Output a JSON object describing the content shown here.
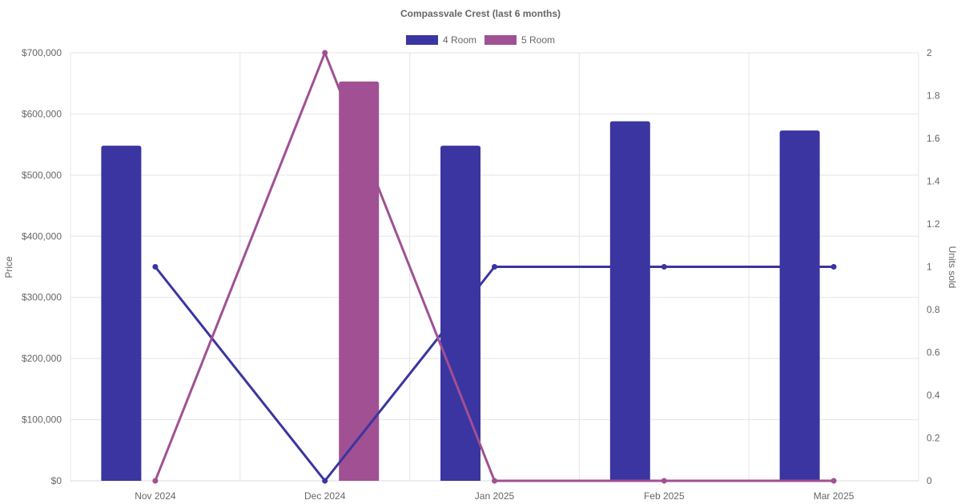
{
  "chart_data": {
    "type": "bar",
    "title": "Compassvale Crest (last 6 months)",
    "categories": [
      "Nov 2024",
      "Dec 2024",
      "Jan 2025",
      "Feb 2025",
      "Mar 2025"
    ],
    "y_left": {
      "label": "Price",
      "range": [
        0,
        700000
      ],
      "ticks": [
        "$0",
        "$100,000",
        "$200,000",
        "$300,000",
        "$400,000",
        "$500,000",
        "$600,000",
        "$700,000"
      ],
      "tick_values": [
        0,
        100000,
        200000,
        300000,
        400000,
        500000,
        600000,
        700000
      ]
    },
    "y_right": {
      "label": "Units sold",
      "range": [
        0,
        2
      ],
      "ticks": [
        "0",
        "0.2",
        "0.4",
        "0.6",
        "0.8",
        "1",
        "1.2",
        "1.4",
        "1.6",
        "1.8",
        "2"
      ],
      "tick_values": [
        0,
        0.2,
        0.4,
        0.6,
        0.8,
        1,
        1.2,
        1.4,
        1.6,
        1.8,
        2
      ]
    },
    "series": [
      {
        "name": "4 Room",
        "color": "#3a35a0",
        "bar_values": [
          548000,
          null,
          548000,
          588000,
          573000
        ],
        "line_values": [
          1,
          0,
          1,
          1,
          1
        ]
      },
      {
        "name": "5 Room",
        "color": "#a05093",
        "bar_values": [
          null,
          653000,
          null,
          null,
          null
        ],
        "line_values": [
          0,
          2,
          0,
          0,
          0
        ]
      }
    ],
    "grid": true,
    "legend_position": "top"
  }
}
